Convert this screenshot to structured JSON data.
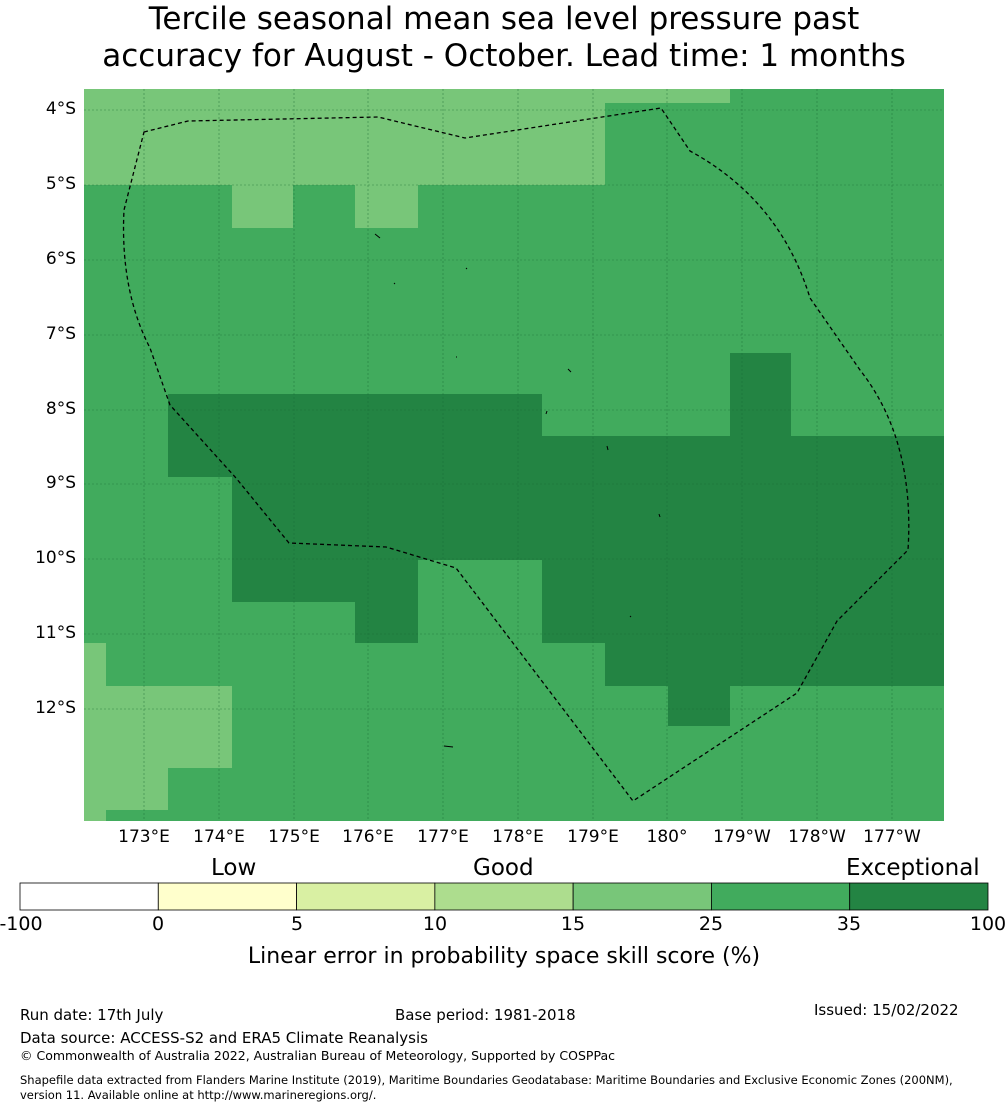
{
  "title_line1": "Tercile seasonal mean sea level pressure past",
  "title_line2": "accuracy for August - October. Lead time: 1 months",
  "lat_labels": [
    "4°S",
    "5°S",
    "6°S",
    "7°S",
    "8°S",
    "9°S",
    "10°S",
    "11°S",
    "12°S"
  ],
  "lon_labels": [
    "173°E",
    "174°E",
    "175°E",
    "176°E",
    "177°E",
    "178°E",
    "179°E",
    "180°",
    "179°W",
    "178°W",
    "177°W"
  ],
  "categories": {
    "low": "Low",
    "good": "Good",
    "exceptional": "Exceptional"
  },
  "colorbar": {
    "ticks": [
      "-100",
      "0",
      "5",
      "10",
      "15",
      "25",
      "35",
      "100"
    ],
    "colors": [
      "#ffffff",
      "#ffffcc",
      "#d9f0a3",
      "#addd8e",
      "#78c679",
      "#41ab5d",
      "#238443"
    ],
    "label": "Linear error in probability space skill score (%)"
  },
  "footer": {
    "run_date": "Run date: 17th July",
    "base_period": "Base period: 1981-2018",
    "issued": "Issued: 15/02/2022",
    "data_source": "Data source: ACCESS-S2 and ERA5 Climate Reanalysis",
    "copyright": "© Commonwealth of Australia 2022, Australian Bureau of Meteorology, Supported by COSPPac",
    "shapefile_line1": "Shapefile data extracted from Flanders Marine Institute (2019), Maritime Boundaries Geodatabase: Maritime Boundaries and Exclusive Economic Zones (200NM),",
    "shapefile_line2": "version 11. Available online at http://www.marineregions.org/."
  }
}
